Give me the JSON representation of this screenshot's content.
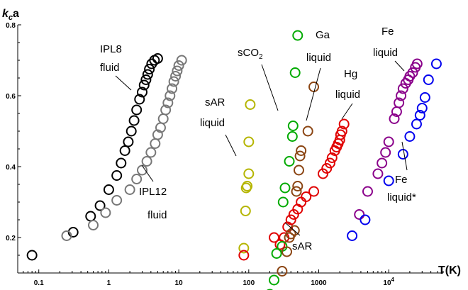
{
  "chart_data": {
    "type": "scatter",
    "xscale": "log",
    "xlim": [
      0.05,
      60000
    ],
    "ylim": [
      0.1,
      0.8
    ],
    "xlabel": "T(K)",
    "ylabel_main": "k",
    "ylabel_sub": "c",
    "ylabel_tail": "a",
    "x_ticks": [
      {
        "value": 0.1,
        "label": "0.1"
      },
      {
        "value": 1,
        "label": "1"
      },
      {
        "value": 10,
        "label": "10"
      },
      {
        "value": 100,
        "label": "100"
      },
      {
        "value": 1000,
        "label": "1000"
      },
      {
        "value": 10000,
        "label": "10",
        "sup": "4"
      }
    ],
    "y_ticks": [
      {
        "value": 0.2,
        "label": "0.2"
      },
      {
        "value": 0.4,
        "label": "0.4"
      },
      {
        "value": 0.6,
        "label": "0.6"
      },
      {
        "value": 0.8,
        "label": "0.8"
      }
    ],
    "series": [
      {
        "color": "#000000",
        "points": [
          [
            0.08,
            0.15
          ],
          [
            0.31,
            0.215
          ],
          [
            0.55,
            0.26
          ],
          [
            0.75,
            0.29
          ],
          [
            1.0,
            0.335
          ],
          [
            1.3,
            0.375
          ],
          [
            1.5,
            0.41
          ],
          [
            1.7,
            0.445
          ],
          [
            1.9,
            0.47
          ],
          [
            2.1,
            0.5
          ],
          [
            2.3,
            0.53
          ],
          [
            2.5,
            0.56
          ],
          [
            2.75,
            0.59
          ],
          [
            3.0,
            0.61
          ],
          [
            3.2,
            0.63
          ],
          [
            3.4,
            0.645
          ],
          [
            3.6,
            0.66
          ],
          [
            3.8,
            0.675
          ],
          [
            4.1,
            0.69
          ],
          [
            4.5,
            0.7
          ],
          [
            5.0,
            0.705
          ]
        ]
      },
      {
        "color": "#777777",
        "points": [
          [
            0.25,
            0.205
          ],
          [
            0.6,
            0.235
          ],
          [
            0.9,
            0.27
          ],
          [
            1.3,
            0.305
          ],
          [
            2.0,
            0.335
          ],
          [
            2.5,
            0.365
          ],
          [
            3.0,
            0.39
          ],
          [
            3.5,
            0.415
          ],
          [
            4.0,
            0.44
          ],
          [
            4.6,
            0.465
          ],
          [
            5.0,
            0.49
          ],
          [
            5.5,
            0.51
          ],
          [
            6.0,
            0.535
          ],
          [
            6.5,
            0.56
          ],
          [
            7.0,
            0.58
          ],
          [
            7.5,
            0.6
          ],
          [
            8.0,
            0.62
          ],
          [
            8.5,
            0.64
          ],
          [
            9.0,
            0.655
          ],
          [
            9.5,
            0.67
          ],
          [
            10.0,
            0.685
          ],
          [
            11.0,
            0.7
          ]
        ]
      },
      {
        "color": "#b5b500",
        "points": [
          [
            85,
            0.17
          ],
          [
            90,
            0.275
          ],
          [
            92,
            0.34
          ],
          [
            95,
            0.345
          ],
          [
            100,
            0.38
          ],
          [
            100,
            0.47
          ],
          [
            105,
            0.575
          ]
        ]
      },
      {
        "color": "#e00000",
        "points": [
          [
            85,
            0.15
          ],
          [
            230,
            0.2
          ],
          [
            280,
            0.18
          ],
          [
            320,
            0.2
          ],
          [
            360,
            0.23
          ],
          [
            400,
            0.25
          ],
          [
            440,
            0.265
          ],
          [
            500,
            0.28
          ],
          [
            560,
            0.3
          ],
          [
            660,
            0.315
          ],
          [
            850,
            0.33
          ],
          [
            1150,
            0.38
          ],
          [
            1300,
            0.395
          ],
          [
            1450,
            0.41
          ],
          [
            1550,
            0.425
          ],
          [
            1700,
            0.445
          ],
          [
            1800,
            0.455
          ],
          [
            1900,
            0.465
          ],
          [
            2000,
            0.475
          ],
          [
            2050,
            0.49
          ],
          [
            2150,
            0.5
          ],
          [
            2300,
            0.52
          ]
        ]
      },
      {
        "color": "#00aa00",
        "points": [
          [
            200,
            0.04
          ],
          [
            230,
            0.08
          ],
          [
            250,
            0.155
          ],
          [
            300,
            0.175
          ],
          [
            310,
            0.3
          ],
          [
            330,
            0.34
          ],
          [
            380,
            0.415
          ],
          [
            420,
            0.485
          ],
          [
            430,
            0.515
          ],
          [
            460,
            0.665
          ],
          [
            500,
            0.77
          ]
        ]
      },
      {
        "color": "#8b4513",
        "points": [
          [
            300,
            0.105
          ],
          [
            350,
            0.16
          ],
          [
            380,
            0.2
          ],
          [
            400,
            0.21
          ],
          [
            450,
            0.22
          ],
          [
            480,
            0.33
          ],
          [
            500,
            0.345
          ],
          [
            520,
            0.39
          ],
          [
            540,
            0.43
          ],
          [
            560,
            0.445
          ],
          [
            700,
            0.5
          ],
          [
            850,
            0.625
          ]
        ]
      },
      {
        "color": "#8a008a",
        "points": [
          [
            3800,
            0.265
          ],
          [
            5000,
            0.33
          ],
          [
            7000,
            0.38
          ],
          [
            8000,
            0.41
          ],
          [
            9000,
            0.44
          ],
          [
            10000,
            0.47
          ],
          [
            12000,
            0.535
          ],
          [
            13000,
            0.555
          ],
          [
            14000,
            0.58
          ],
          [
            15000,
            0.6
          ],
          [
            16000,
            0.62
          ],
          [
            17500,
            0.635
          ],
          [
            19000,
            0.645
          ],
          [
            20000,
            0.655
          ],
          [
            22000,
            0.665
          ],
          [
            24000,
            0.68
          ],
          [
            25500,
            0.69
          ]
        ]
      },
      {
        "color": "#0000ee",
        "points": [
          [
            3000,
            0.205
          ],
          [
            4600,
            0.25
          ],
          [
            10000,
            0.36
          ],
          [
            16000,
            0.435
          ],
          [
            20000,
            0.485
          ],
          [
            25000,
            0.52
          ],
          [
            28000,
            0.545
          ],
          [
            30000,
            0.565
          ],
          [
            33000,
            0.595
          ],
          [
            37000,
            0.645
          ],
          [
            48000,
            0.69
          ]
        ]
      }
    ],
    "annotations": [
      {
        "lines": [
          "IPL8",
          "fluid"
        ]
      },
      {
        "lines": [
          "IPL12",
          "fluid"
        ]
      },
      {
        "lines": [
          "sAR",
          "liquid"
        ]
      },
      {
        "lines": [
          "sCO",
          "2"
        ]
      },
      {
        "lines": [
          "Ga",
          "liquid"
        ]
      },
      {
        "lines": [
          "Hg",
          "liquid"
        ]
      },
      {
        "lines": [
          "Fe",
          "liquid"
        ]
      },
      {
        "lines": [
          "Fe",
          "liquid*"
        ]
      },
      {
        "lines": [
          "sAR"
        ]
      }
    ]
  }
}
